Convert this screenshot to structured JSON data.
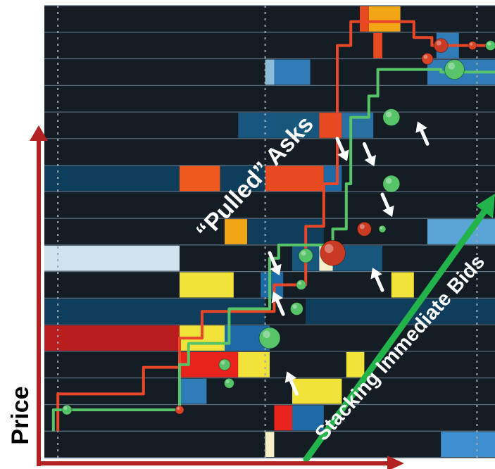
{
  "chart_data": {
    "type": "heatmap",
    "title": "",
    "ylabel": "Price",
    "xlabel": "",
    "annotations": {
      "pulled_asks": "“Pulled” Asks",
      "stacking_bids": "Stacking Immediate Bids"
    },
    "rows": 17,
    "x_range": [
      0,
      100
    ],
    "time_markers": [
      3,
      49,
      96
    ],
    "order_blocks": [
      {
        "row": 0,
        "x0": 72,
        "x1": 79,
        "color": "#f2a515"
      },
      {
        "row": 0,
        "x0": 70,
        "x1": 72,
        "color": "#e84a1f"
      },
      {
        "row": 1,
        "x0": 73,
        "x1": 75,
        "color": "#e84a1f"
      },
      {
        "row": 1,
        "x0": 87,
        "x1": 92,
        "color": "#2f7cb6"
      },
      {
        "row": 2,
        "x0": 51,
        "x1": 59,
        "color": "#2f7cb6"
      },
      {
        "row": 2,
        "x0": 49,
        "x1": 51,
        "color": "#8dbcd9"
      },
      {
        "row": 2,
        "x0": 85,
        "x1": 100,
        "color": "#2f7cb6"
      },
      {
        "row": 4,
        "x0": 43,
        "x1": 61,
        "color": "#17577e"
      },
      {
        "row": 4,
        "x0": 61,
        "x1": 66,
        "color": "#e84a1f"
      },
      {
        "row": 4,
        "x0": 66,
        "x1": 73,
        "color": "#2a6fa3"
      },
      {
        "row": 6,
        "x0": 0,
        "x1": 30,
        "color": "#0f3d5c"
      },
      {
        "row": 6,
        "x0": 30,
        "x1": 39,
        "color": "#ee5a1e"
      },
      {
        "row": 6,
        "x0": 39,
        "x1": 49,
        "color": "#0f3d5c"
      },
      {
        "row": 6,
        "x0": 49,
        "x1": 62,
        "color": "#e84a1f"
      },
      {
        "row": 6,
        "x0": 62,
        "x1": 66,
        "color": "#1d6aa6"
      },
      {
        "row": 8,
        "x0": 40,
        "x1": 45,
        "color": "#f2a515"
      },
      {
        "row": 8,
        "x0": 45,
        "x1": 62,
        "color": "#0f3d5c"
      },
      {
        "row": 8,
        "x0": 85,
        "x1": 100,
        "color": "#5aa4d6"
      },
      {
        "row": 9,
        "x0": 0,
        "x1": 30,
        "color": "#cfe2ee"
      },
      {
        "row": 9,
        "x0": 55,
        "x1": 75,
        "color": "#17577e"
      },
      {
        "row": 9,
        "x0": 61,
        "x1": 64,
        "color": "#f5f0c8"
      },
      {
        "row": 10,
        "x0": 30,
        "x1": 42,
        "color": "#f2e33a"
      },
      {
        "row": 10,
        "x0": 48,
        "x1": 53,
        "color": "#1d6aa6"
      },
      {
        "row": 10,
        "x0": 77,
        "x1": 82,
        "color": "#f2e33a"
      },
      {
        "row": 11,
        "x0": 0,
        "x1": 49,
        "color": "#0f3d5c"
      },
      {
        "row": 11,
        "x0": 58,
        "x1": 100,
        "color": "#0f3d5c"
      },
      {
        "row": 12,
        "x0": 0,
        "x1": 30,
        "color": "#b91d1d"
      },
      {
        "row": 12,
        "x0": 30,
        "x1": 40,
        "color": "#f2e33a"
      },
      {
        "row": 12,
        "x0": 40,
        "x1": 50,
        "color": "#1d6aa6"
      },
      {
        "row": 13,
        "x0": 30,
        "x1": 43,
        "color": "#e8231c"
      },
      {
        "row": 13,
        "x0": 43,
        "x1": 50,
        "color": "#f2e33a"
      },
      {
        "row": 13,
        "x0": 67,
        "x1": 71,
        "color": "#f2e33a"
      },
      {
        "row": 14,
        "x0": 30,
        "x1": 36,
        "color": "#2f7cb6"
      },
      {
        "row": 14,
        "x0": 55,
        "x1": 66,
        "color": "#f2e33a"
      },
      {
        "row": 15,
        "x0": 51,
        "x1": 55,
        "color": "#e8231c"
      },
      {
        "row": 15,
        "x0": 55,
        "x1": 62,
        "color": "#1d6aa6"
      },
      {
        "row": 16,
        "x0": 49,
        "x1": 51,
        "color": "#f5f0c8"
      },
      {
        "row": 16,
        "x0": 88,
        "x1": 100,
        "color": "#3d8fd0"
      }
    ],
    "series": [
      {
        "name": "",
        "color": "#e8472a",
        "points": [
          [
            3,
            16
          ],
          [
            3,
            14.6
          ],
          [
            22,
            14.6
          ],
          [
            22,
            13.6
          ],
          [
            30,
            13.6
          ],
          [
            30,
            12.5
          ],
          [
            35,
            12.5
          ],
          [
            35,
            11.5
          ],
          [
            51,
            11.5
          ],
          [
            51,
            10.5
          ],
          [
            58,
            10.5
          ],
          [
            58,
            8.3
          ],
          [
            62,
            8.3
          ],
          [
            62,
            6.7
          ],
          [
            65,
            6.7
          ],
          [
            65,
            1.5
          ],
          [
            68,
            1.5
          ],
          [
            68,
            0.6
          ],
          [
            82,
            0.6
          ],
          [
            82,
            1.2
          ],
          [
            86,
            1.2
          ],
          [
            86,
            1.5
          ],
          [
            100,
            1.5
          ]
        ]
      },
      {
        "name": "",
        "color": "#58c46a",
        "points": [
          [
            2,
            16
          ],
          [
            2,
            15.2
          ],
          [
            30,
            15.2
          ],
          [
            30,
            13.5
          ],
          [
            32,
            13.5
          ],
          [
            32,
            12.7
          ],
          [
            41,
            12.7
          ],
          [
            41,
            11.4
          ],
          [
            50,
            11.4
          ],
          [
            50,
            10.3
          ],
          [
            50,
            9.5
          ],
          [
            52,
            9.5
          ],
          [
            52,
            9
          ],
          [
            64,
            9
          ],
          [
            64,
            8.4
          ],
          [
            67,
            8.4
          ],
          [
            67,
            6.7
          ],
          [
            68,
            6.7
          ],
          [
            68,
            4.2
          ],
          [
            72,
            4.2
          ],
          [
            72,
            3.4
          ],
          [
            74,
            3.4
          ],
          [
            74,
            2.4
          ],
          [
            88,
            2.4
          ],
          [
            88,
            2.5
          ],
          [
            100,
            2.5
          ]
        ]
      }
    ],
    "markers": [
      {
        "x": 5,
        "y": 15.2,
        "size": 7,
        "color": "#58c46a"
      },
      {
        "x": 30,
        "y": 15.2,
        "size": 6,
        "color": "#d84428"
      },
      {
        "x": 40,
        "y": 13.5,
        "size": 8,
        "color": "#58c46a"
      },
      {
        "x": 41,
        "y": 14.2,
        "size": 7,
        "color": "#58c46a"
      },
      {
        "x": 50,
        "y": 12.5,
        "size": 15,
        "color": "#58c46a"
      },
      {
        "x": 56,
        "y": 11.4,
        "size": 9,
        "color": "#58c46a"
      },
      {
        "x": 57,
        "y": 10.5,
        "size": 7,
        "color": "#58c46a"
      },
      {
        "x": 58,
        "y": 9.4,
        "size": 10,
        "color": "#58c46a"
      },
      {
        "x": 64,
        "y": 9.3,
        "size": 18,
        "color": "#c93a24"
      },
      {
        "x": 71,
        "y": 8.4,
        "size": 10,
        "color": "#c93a24"
      },
      {
        "x": 75,
        "y": 8.4,
        "size": 5,
        "color": "#58c46a"
      },
      {
        "x": 77,
        "y": 6.7,
        "size": 12,
        "color": "#58c46a"
      },
      {
        "x": 77,
        "y": 4.2,
        "size": 12,
        "color": "#58c46a"
      },
      {
        "x": 85,
        "y": 2.0,
        "size": 8,
        "color": "#d84428"
      },
      {
        "x": 88,
        "y": 1.5,
        "size": 10,
        "color": "#c93a24"
      },
      {
        "x": 91,
        "y": 2.4,
        "size": 14,
        "color": "#58c46a"
      },
      {
        "x": 95,
        "y": 1.5,
        "size": 6,
        "color": "#d84428"
      },
      {
        "x": 99,
        "y": 1.5,
        "size": 7,
        "color": "#58c46a"
      }
    ],
    "arrows_down": [
      [
        71,
        5.2
      ],
      [
        75,
        7.1
      ],
      [
        65,
        5.0
      ],
      [
        50,
        9.3
      ]
    ],
    "arrows_up": [
      [
        85,
        5.2
      ],
      [
        53,
        11.6
      ],
      [
        56,
        14.6
      ],
      [
        75,
        10.7
      ]
    ]
  },
  "colors": {
    "background": "#141c24",
    "row_line": "#5f7180",
    "axis": "#b22222",
    "trend": "#22b34a"
  }
}
